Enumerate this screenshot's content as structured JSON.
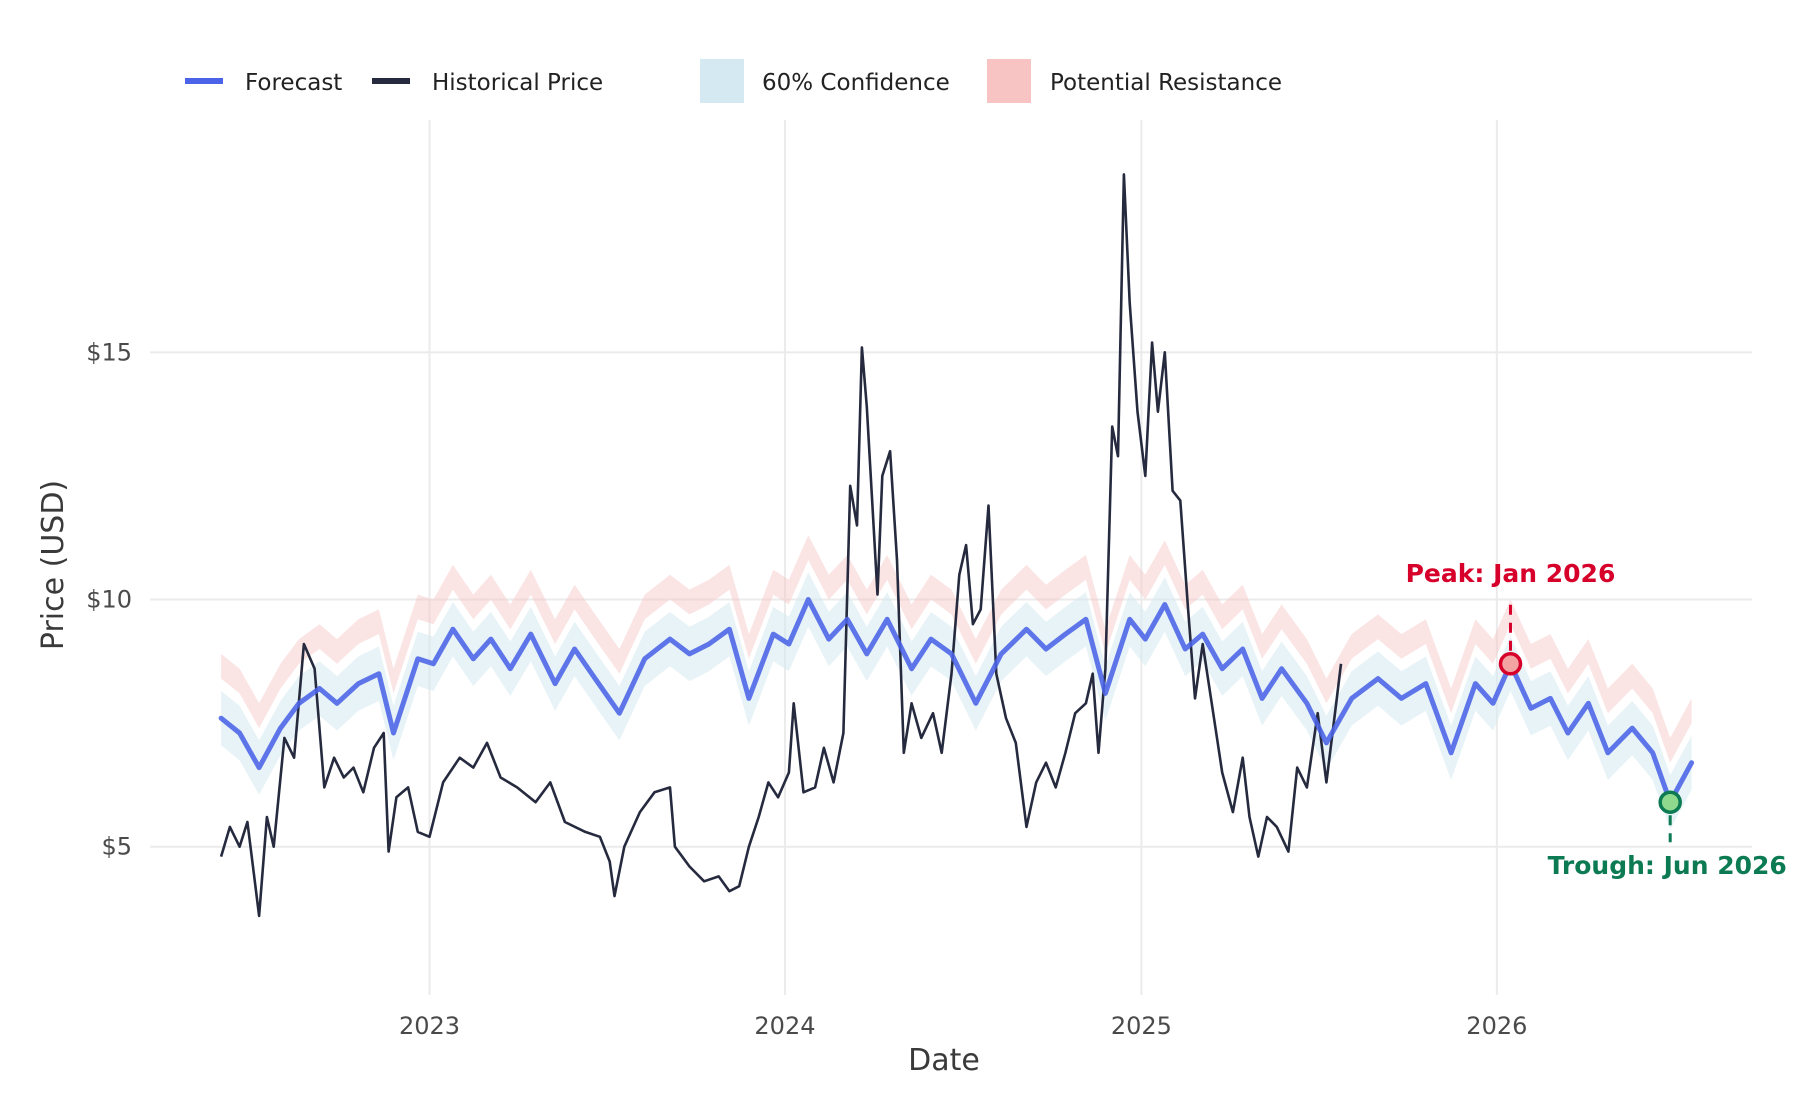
{
  "chart_data": {
    "type": "line",
    "title": "",
    "xlabel": "Date",
    "ylabel": "Price (USD)",
    "x_ticks": [
      "2023",
      "2024",
      "2025",
      "2026"
    ],
    "y_ticks": [
      {
        "value": 5,
        "label": "$5"
      },
      {
        "value": 10,
        "label": "$10"
      },
      {
        "value": 15,
        "label": "$15"
      }
    ],
    "xlim": [
      "2022-03-20",
      "2026-09-20"
    ],
    "ylim": [
      2.0,
      19.7
    ],
    "grid": true,
    "legend": {
      "placement": "top",
      "entries": [
        {
          "label": "Forecast",
          "color": "#4b63e8",
          "kind": "line"
        },
        {
          "label": "Historical Price",
          "color": "#262a3e",
          "kind": "line"
        },
        {
          "label": "60% Confidence",
          "color": "#d4e9f1",
          "kind": "patch"
        },
        {
          "label": "Potential Resistance",
          "color": "#f7c3c3",
          "kind": "patch"
        }
      ]
    },
    "series": [
      {
        "name": "Historical Price",
        "color": "#262a3e",
        "points": [
          [
            "2022-06-01",
            4.8
          ],
          [
            "2022-06-10",
            5.4
          ],
          [
            "2022-06-20",
            5.0
          ],
          [
            "2022-06-28",
            5.5
          ],
          [
            "2022-07-05",
            4.4
          ],
          [
            "2022-07-10",
            3.6
          ],
          [
            "2022-07-18",
            5.6
          ],
          [
            "2022-07-25",
            5.0
          ],
          [
            "2022-08-05",
            7.2
          ],
          [
            "2022-08-15",
            6.8
          ],
          [
            "2022-08-25",
            9.1
          ],
          [
            "2022-09-05",
            8.6
          ],
          [
            "2022-09-15",
            6.2
          ],
          [
            "2022-09-25",
            6.8
          ],
          [
            "2022-10-05",
            6.4
          ],
          [
            "2022-10-15",
            6.6
          ],
          [
            "2022-10-25",
            6.1
          ],
          [
            "2022-11-05",
            7.0
          ],
          [
            "2022-11-15",
            7.3
          ],
          [
            "2022-11-20",
            4.9
          ],
          [
            "2022-11-28",
            6.0
          ],
          [
            "2022-12-10",
            6.2
          ],
          [
            "2022-12-20",
            5.3
          ],
          [
            "2023-01-01",
            5.2
          ],
          [
            "2023-01-15",
            6.3
          ],
          [
            "2023-02-01",
            6.8
          ],
          [
            "2023-02-15",
            6.6
          ],
          [
            "2023-03-01",
            7.1
          ],
          [
            "2023-03-15",
            6.4
          ],
          [
            "2023-04-01",
            6.2
          ],
          [
            "2023-04-20",
            5.9
          ],
          [
            "2023-05-05",
            6.3
          ],
          [
            "2023-05-20",
            5.5
          ],
          [
            "2023-06-10",
            5.3
          ],
          [
            "2023-06-25",
            5.2
          ],
          [
            "2023-07-05",
            4.7
          ],
          [
            "2023-07-10",
            4.0
          ],
          [
            "2023-07-20",
            5.0
          ],
          [
            "2023-08-05",
            5.7
          ],
          [
            "2023-08-20",
            6.1
          ],
          [
            "2023-09-05",
            6.2
          ],
          [
            "2023-09-10",
            5.0
          ],
          [
            "2023-09-25",
            4.6
          ],
          [
            "2023-10-10",
            4.3
          ],
          [
            "2023-10-25",
            4.4
          ],
          [
            "2023-11-05",
            4.1
          ],
          [
            "2023-11-15",
            4.2
          ],
          [
            "2023-11-25",
            5.0
          ],
          [
            "2023-12-05",
            5.6
          ],
          [
            "2023-12-15",
            6.3
          ],
          [
            "2023-12-25",
            6.0
          ],
          [
            "2024-01-05",
            6.5
          ],
          [
            "2024-01-10",
            7.9
          ],
          [
            "2024-01-20",
            6.1
          ],
          [
            "2024-02-01",
            6.2
          ],
          [
            "2024-02-10",
            7.0
          ],
          [
            "2024-02-20",
            6.3
          ],
          [
            "2024-03-01",
            7.3
          ],
          [
            "2024-03-08",
            12.3
          ],
          [
            "2024-03-15",
            11.5
          ],
          [
            "2024-03-20",
            15.1
          ],
          [
            "2024-03-25",
            13.9
          ],
          [
            "2024-04-05",
            10.1
          ],
          [
            "2024-04-10",
            12.5
          ],
          [
            "2024-04-18",
            13.0
          ],
          [
            "2024-04-25",
            10.8
          ],
          [
            "2024-05-02",
            6.9
          ],
          [
            "2024-05-10",
            7.9
          ],
          [
            "2024-05-20",
            7.2
          ],
          [
            "2024-06-01",
            7.7
          ],
          [
            "2024-06-10",
            6.9
          ],
          [
            "2024-06-20",
            8.5
          ],
          [
            "2024-06-28",
            10.5
          ],
          [
            "2024-07-05",
            11.1
          ],
          [
            "2024-07-12",
            9.5
          ],
          [
            "2024-07-20",
            9.8
          ],
          [
            "2024-07-28",
            11.9
          ],
          [
            "2024-08-05",
            8.5
          ],
          [
            "2024-08-15",
            7.6
          ],
          [
            "2024-08-25",
            7.1
          ],
          [
            "2024-09-05",
            5.4
          ],
          [
            "2024-09-15",
            6.3
          ],
          [
            "2024-09-25",
            6.7
          ],
          [
            "2024-10-05",
            6.2
          ],
          [
            "2024-10-15",
            6.9
          ],
          [
            "2024-10-25",
            7.7
          ],
          [
            "2024-11-05",
            7.9
          ],
          [
            "2024-11-12",
            8.5
          ],
          [
            "2024-11-18",
            6.9
          ],
          [
            "2024-11-25",
            8.6
          ],
          [
            "2024-12-02",
            13.5
          ],
          [
            "2024-12-08",
            12.9
          ],
          [
            "2024-12-14",
            18.6
          ],
          [
            "2024-12-20",
            16.0
          ],
          [
            "2024-12-28",
            13.8
          ],
          [
            "2025-01-05",
            12.5
          ],
          [
            "2025-01-12",
            15.2
          ],
          [
            "2025-01-18",
            13.8
          ],
          [
            "2025-01-25",
            15.0
          ],
          [
            "2025-02-02",
            12.2
          ],
          [
            "2025-02-10",
            12.0
          ],
          [
            "2025-02-18",
            9.8
          ],
          [
            "2025-02-25",
            8.0
          ],
          [
            "2025-03-05",
            9.1
          ],
          [
            "2025-03-15",
            7.8
          ],
          [
            "2025-03-25",
            6.5
          ],
          [
            "2025-04-05",
            5.7
          ],
          [
            "2025-04-15",
            6.8
          ],
          [
            "2025-04-22",
            5.6
          ],
          [
            "2025-05-01",
            4.8
          ],
          [
            "2025-05-10",
            5.6
          ],
          [
            "2025-05-20",
            5.4
          ],
          [
            "2025-06-01",
            4.9
          ],
          [
            "2025-06-10",
            6.6
          ],
          [
            "2025-06-20",
            6.2
          ],
          [
            "2025-07-01",
            7.7
          ],
          [
            "2025-07-10",
            6.3
          ],
          [
            "2025-07-20",
            7.9
          ],
          [
            "2025-07-25",
            8.7
          ]
        ]
      },
      {
        "name": "Forecast",
        "color": "#4b63e8",
        "points": [
          [
            "2022-06-01",
            7.6
          ],
          [
            "2022-06-20",
            7.3
          ],
          [
            "2022-07-10",
            6.6
          ],
          [
            "2022-08-01",
            7.4
          ],
          [
            "2022-08-20",
            7.9
          ],
          [
            "2022-09-10",
            8.2
          ],
          [
            "2022-09-28",
            7.9
          ],
          [
            "2022-10-20",
            8.3
          ],
          [
            "2022-11-10",
            8.5
          ],
          [
            "2022-11-25",
            7.3
          ],
          [
            "2022-12-20",
            8.8
          ],
          [
            "2023-01-05",
            8.7
          ],
          [
            "2023-01-25",
            9.4
          ],
          [
            "2023-02-15",
            8.8
          ],
          [
            "2023-03-05",
            9.2
          ],
          [
            "2023-03-25",
            8.6
          ],
          [
            "2023-04-15",
            9.3
          ],
          [
            "2023-05-10",
            8.3
          ],
          [
            "2023-05-30",
            9.0
          ],
          [
            "2023-06-20",
            8.4
          ],
          [
            "2023-07-15",
            7.7
          ],
          [
            "2023-08-10",
            8.8
          ],
          [
            "2023-09-05",
            9.2
          ],
          [
            "2023-09-25",
            8.9
          ],
          [
            "2023-10-15",
            9.1
          ],
          [
            "2023-11-05",
            9.4
          ],
          [
            "2023-11-25",
            8.0
          ],
          [
            "2023-12-20",
            9.3
          ],
          [
            "2024-01-05",
            9.1
          ],
          [
            "2024-01-25",
            10.0
          ],
          [
            "2024-02-15",
            9.2
          ],
          [
            "2024-03-05",
            9.6
          ],
          [
            "2024-03-25",
            8.9
          ],
          [
            "2024-04-15",
            9.6
          ],
          [
            "2024-05-10",
            8.6
          ],
          [
            "2024-05-30",
            9.2
          ],
          [
            "2024-06-20",
            8.9
          ],
          [
            "2024-07-15",
            7.9
          ],
          [
            "2024-08-10",
            8.9
          ],
          [
            "2024-09-05",
            9.4
          ],
          [
            "2024-09-25",
            9.0
          ],
          [
            "2024-10-15",
            9.3
          ],
          [
            "2024-11-05",
            9.6
          ],
          [
            "2024-11-25",
            8.1
          ],
          [
            "2024-12-20",
            9.6
          ],
          [
            "2025-01-05",
            9.2
          ],
          [
            "2025-01-25",
            9.9
          ],
          [
            "2025-02-15",
            9.0
          ],
          [
            "2025-03-05",
            9.3
          ],
          [
            "2025-03-25",
            8.6
          ],
          [
            "2025-04-15",
            9.0
          ],
          [
            "2025-05-05",
            8.0
          ],
          [
            "2025-05-25",
            8.6
          ],
          [
            "2025-06-20",
            7.9
          ],
          [
            "2025-07-10",
            7.1
          ],
          [
            "2025-08-05",
            8.0
          ],
          [
            "2025-09-01",
            8.4
          ],
          [
            "2025-09-25",
            8.0
          ],
          [
            "2025-10-20",
            8.3
          ],
          [
            "2025-11-15",
            6.9
          ],
          [
            "2025-12-10",
            8.3
          ],
          [
            "2025-12-28",
            7.9
          ],
          [
            "2026-01-15",
            8.7
          ],
          [
            "2026-02-05",
            7.8
          ],
          [
            "2026-02-25",
            8.0
          ],
          [
            "2026-03-15",
            7.3
          ],
          [
            "2026-04-05",
            7.9
          ],
          [
            "2026-04-25",
            6.9
          ],
          [
            "2026-05-20",
            7.4
          ],
          [
            "2026-06-10",
            6.9
          ],
          [
            "2026-06-28",
            5.9
          ],
          [
            "2026-07-20",
            6.7
          ]
        ]
      }
    ],
    "bands": {
      "confidence_half_width": 0.55,
      "resistance_offset": 1.05,
      "resistance_half_width": 0.25
    },
    "annotations": [
      {
        "label": "Peak: Jan 2026",
        "date": "2026-01-15",
        "value": 8.7,
        "color": "#d6002b",
        "fill": "#f4a3a3",
        "position": "above"
      },
      {
        "label": "Trough: Jun 2026",
        "date": "2026-06-28",
        "value": 5.9,
        "color": "#0c7a52",
        "fill": "#8fd98e",
        "position": "below"
      }
    ],
    "colors": {
      "grid": "#ebebeb",
      "confidence": "#d4e9f1",
      "resistance": "#f7c3c3"
    }
  }
}
